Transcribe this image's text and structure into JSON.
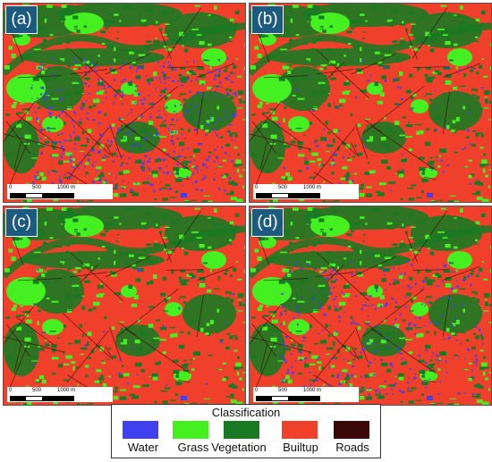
{
  "panels": [
    {
      "id": "a",
      "label": "(a)",
      "blue_density": 0.55,
      "scale": {
        "start": "0",
        "mid": "500",
        "end": "1000 m"
      }
    },
    {
      "id": "b",
      "label": "(b)",
      "blue_density": 0.08,
      "scale": {
        "start": "0",
        "mid": "500",
        "end": "1000 m"
      }
    },
    {
      "id": "c",
      "label": "(c)",
      "blue_density": 0.03,
      "scale": {
        "start": "0",
        "mid": "500",
        "end": "1000 m"
      }
    },
    {
      "id": "d",
      "label": "(d)",
      "blue_density": 0.35,
      "scale": {
        "start": "0",
        "mid": "500",
        "end": "1000 m"
      }
    }
  ],
  "legend": {
    "title": "Classification",
    "items": [
      {
        "label": "Water",
        "color": "#4040f0"
      },
      {
        "label": "Grass",
        "color": "#44f020"
      },
      {
        "label": "Vegetation",
        "color": "#187a22"
      },
      {
        "label": "Builtup",
        "color": "#f0402c"
      },
      {
        "label": "Roads",
        "color": "#3a0808"
      }
    ]
  }
}
